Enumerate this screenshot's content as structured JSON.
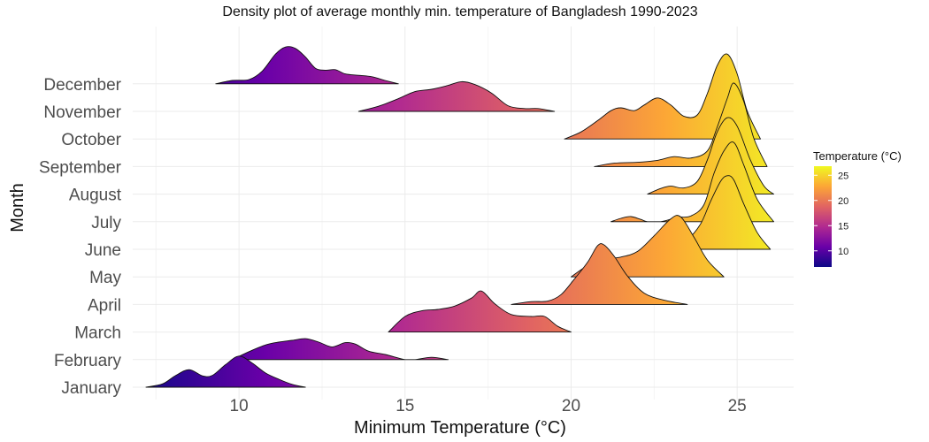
{
  "chart_data": {
    "type": "ridgeline-density",
    "title": "Density plot of average monthly min. temperature of Bangladesh 1990-2023",
    "xlabel": "Minimum Temperature (°C)",
    "ylabel": "Month",
    "xlim": [
      6.8,
      26.7
    ],
    "xticks": [
      10,
      15,
      20,
      25
    ],
    "categories": [
      "January",
      "February",
      "March",
      "April",
      "May",
      "June",
      "July",
      "August",
      "September",
      "October",
      "November",
      "December"
    ],
    "series": [
      {
        "name": "January",
        "x": [
          7.2,
          7.7,
          8.1,
          8.5,
          8.9,
          9.2,
          9.6,
          10.0,
          10.4,
          10.8,
          11.2,
          11.6,
          12.0
        ],
        "y": [
          0.0,
          0.12,
          0.42,
          0.62,
          0.4,
          0.42,
          0.8,
          1.1,
          0.85,
          0.5,
          0.28,
          0.1,
          0.0
        ]
      },
      {
        "name": "February",
        "x": [
          9.8,
          10.3,
          10.8,
          11.2,
          11.6,
          12.0,
          12.4,
          12.8,
          13.2,
          13.5,
          13.9,
          14.4,
          15.0,
          15.3,
          15.8,
          16.3
        ],
        "y": [
          0.0,
          0.28,
          0.52,
          0.62,
          0.68,
          0.74,
          0.62,
          0.45,
          0.6,
          0.55,
          0.3,
          0.18,
          0.0,
          0.0,
          0.08,
          0.0
        ]
      },
      {
        "name": "March",
        "x": [
          14.5,
          15.0,
          15.5,
          16.0,
          16.5,
          17.0,
          17.3,
          17.7,
          18.2,
          18.8,
          19.2,
          19.6,
          20.0
        ],
        "y": [
          0.0,
          0.55,
          0.75,
          0.8,
          0.92,
          1.2,
          1.45,
          1.0,
          0.62,
          0.55,
          0.55,
          0.2,
          0.0
        ]
      },
      {
        "name": "April",
        "x": [
          18.2,
          18.8,
          19.3,
          19.7,
          20.1,
          20.5,
          20.8,
          21.0,
          21.3,
          21.7,
          22.2,
          22.8,
          23.5
        ],
        "y": [
          0.0,
          0.1,
          0.12,
          0.35,
          0.9,
          1.5,
          2.08,
          2.1,
          1.7,
          1.0,
          0.4,
          0.15,
          0.0
        ]
      },
      {
        "name": "May",
        "x": [
          20.0,
          20.5,
          21.0,
          21.5,
          22.0,
          22.5,
          23.0,
          23.3,
          23.7,
          24.1,
          24.6
        ],
        "y": [
          0.0,
          0.4,
          0.62,
          0.7,
          0.9,
          1.45,
          2.05,
          2.12,
          1.4,
          0.6,
          0.0
        ]
      },
      {
        "name": "June",
        "x": [
          22.7,
          23.1,
          23.5,
          23.9,
          24.2,
          24.5,
          24.7,
          24.9,
          25.2,
          25.6,
          26.0
        ],
        "y": [
          0.0,
          0.2,
          0.35,
          0.9,
          1.7,
          2.4,
          2.6,
          2.45,
          1.6,
          0.6,
          0.0
        ]
      },
      {
        "name": "July",
        "x": [
          21.2,
          21.5,
          21.8,
          22.1,
          22.3,
          22.7,
          23.2,
          23.6,
          24.0,
          24.3,
          24.6,
          24.9,
          25.2,
          25.6,
          26.1
        ],
        "y": [
          0.0,
          0.12,
          0.18,
          0.08,
          0.0,
          0.0,
          0.15,
          0.2,
          0.6,
          1.7,
          2.5,
          2.8,
          2.0,
          0.8,
          0.0
        ]
      },
      {
        "name": "August",
        "x": [
          22.3,
          22.7,
          23.0,
          23.4,
          23.8,
          24.1,
          24.4,
          24.7,
          25.0,
          25.4,
          25.8,
          26.1
        ],
        "y": [
          0.0,
          0.2,
          0.28,
          0.22,
          0.45,
          1.2,
          2.2,
          2.7,
          2.4,
          1.2,
          0.3,
          0.0
        ]
      },
      {
        "name": "September",
        "x": [
          20.7,
          21.3,
          22.0,
          22.6,
          23.1,
          23.6,
          24.1,
          24.4,
          24.7,
          24.9,
          25.2,
          25.5,
          25.9
        ],
        "y": [
          0.0,
          0.12,
          0.15,
          0.22,
          0.35,
          0.3,
          0.55,
          1.4,
          2.4,
          2.95,
          2.3,
          1.0,
          0.0
        ]
      },
      {
        "name": "October",
        "x": [
          19.8,
          20.3,
          20.8,
          21.2,
          21.5,
          21.9,
          22.2,
          22.6,
          23.0,
          23.4,
          23.8,
          24.1,
          24.4,
          24.7,
          25.0,
          25.3,
          25.7
        ],
        "y": [
          0.0,
          0.25,
          0.65,
          1.0,
          1.1,
          1.0,
          1.2,
          1.45,
          1.2,
          0.8,
          0.85,
          1.6,
          2.6,
          3.0,
          2.3,
          1.0,
          0.0
        ]
      },
      {
        "name": "November",
        "x": [
          13.6,
          14.2,
          14.8,
          15.3,
          15.8,
          16.3,
          16.7,
          17.1,
          17.6,
          18.1,
          18.6,
          19.0,
          19.5
        ],
        "y": [
          0.0,
          0.18,
          0.45,
          0.7,
          0.78,
          0.92,
          1.05,
          0.95,
          0.65,
          0.2,
          0.1,
          0.1,
          0.0
        ]
      },
      {
        "name": "December",
        "x": [
          9.3,
          9.8,
          10.3,
          10.7,
          11.1,
          11.4,
          11.7,
          12.0,
          12.3,
          12.6,
          12.9,
          13.2,
          13.6,
          14.0,
          14.4,
          14.8
        ],
        "y": [
          0.0,
          0.12,
          0.15,
          0.45,
          1.05,
          1.3,
          1.25,
          0.95,
          0.55,
          0.48,
          0.5,
          0.35,
          0.3,
          0.25,
          0.12,
          0.0
        ]
      }
    ],
    "legend": {
      "title": "Temperature (°C)",
      "ticks": [
        10,
        15,
        20,
        25
      ],
      "range": [
        6.8,
        26.8
      ],
      "placement": "right",
      "colors": [
        "#0d0887",
        "#6a00a8",
        "#b12a90",
        "#e16462",
        "#fca636",
        "#f0f921"
      ]
    },
    "grid": true
  }
}
